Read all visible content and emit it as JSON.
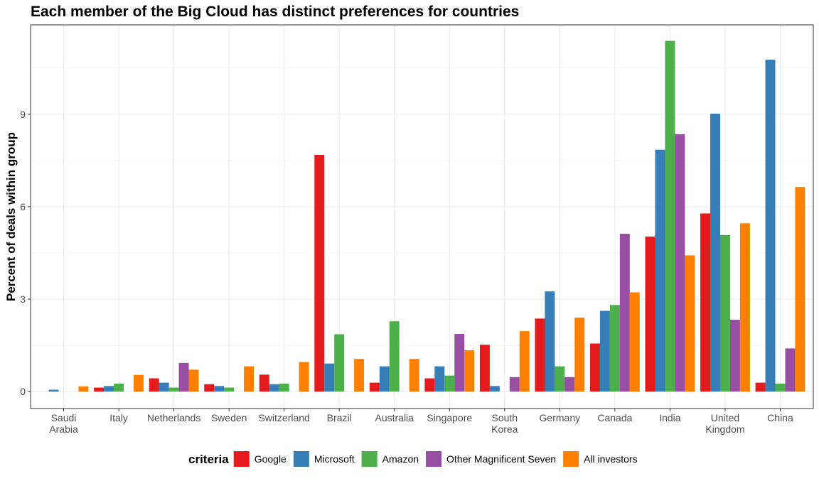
{
  "chart_data": {
    "type": "bar",
    "title": "Each member of the Big Cloud has distinct preferences for countries",
    "xlabel": "",
    "ylabel": "Percent of deals within group",
    "ylim": [
      -0.55,
      11.9
    ],
    "yticks": [
      0,
      3,
      6,
      9
    ],
    "grid": true,
    "legend_position": "bottom",
    "legend_title": "criteria",
    "categories": [
      "Saudi Arabia",
      "Italy",
      "Netherlands",
      "Sweden",
      "Switzerland",
      "Brazil",
      "Australia",
      "Singapore",
      "South Korea",
      "Germany",
      "Canada",
      "India",
      "United Kingdom",
      "China"
    ],
    "category_labels": [
      [
        "Saudi",
        "Arabia"
      ],
      [
        "Italy"
      ],
      [
        "Netherlands"
      ],
      [
        "Sweden"
      ],
      [
        "Switzerland"
      ],
      [
        "Brazil"
      ],
      [
        "Australia"
      ],
      [
        "Singapore"
      ],
      [
        "South",
        "Korea"
      ],
      [
        "Germany"
      ],
      [
        "Canada"
      ],
      [
        "India"
      ],
      [
        "United",
        "Kingdom"
      ],
      [
        "China"
      ]
    ],
    "series": [
      {
        "name": "Google",
        "color": "#e41a1c",
        "values": [
          0,
          0.13,
          0.43,
          0.24,
          0.55,
          7.68,
          0.29,
          0.43,
          1.52,
          2.37,
          1.56,
          5.03,
          5.78,
          0.29
        ]
      },
      {
        "name": "Microsoft",
        "color": "#377eb8",
        "values": [
          0.06,
          0.18,
          0.29,
          0.18,
          0.24,
          0.91,
          0.82,
          0.82,
          0.18,
          3.25,
          2.62,
          7.85,
          9.02,
          10.77
        ]
      },
      {
        "name": "Amazon",
        "color": "#4daf4a",
        "values": [
          0,
          0.26,
          0.13,
          0.13,
          0.26,
          1.86,
          2.28,
          0.52,
          0,
          0.82,
          2.81,
          11.38,
          5.08,
          0.26
        ]
      },
      {
        "name": "Other Magnificent Seven",
        "color": "#984ea3",
        "values": [
          0,
          0,
          0.93,
          0,
          0,
          0,
          0,
          1.87,
          0.47,
          0.47,
          5.12,
          8.35,
          2.33,
          1.4
        ]
      },
      {
        "name": "All investors",
        "color": "#ff7f00",
        "values": [
          0.17,
          0.54,
          0.71,
          0.82,
          0.96,
          1.06,
          1.06,
          1.34,
          1.96,
          2.4,
          3.22,
          4.42,
          5.46,
          6.64
        ]
      }
    ]
  }
}
